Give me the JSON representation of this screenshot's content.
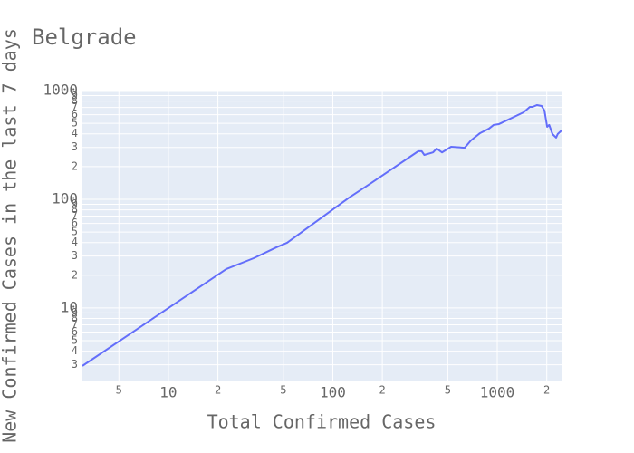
{
  "chart_data": {
    "type": "line",
    "title": "Belgrade",
    "x_label": "Total Confirmed Cases",
    "y_label": "New Confirmed Cases in the last 7 days",
    "xlog": true,
    "ylog": true,
    "grid": true,
    "xlim": [
      3,
      2460
    ],
    "ylim": [
      2.15,
      1000
    ],
    "xticks": [
      5,
      10,
      {
        "value": 20,
        "label": "2"
      },
      {
        "value": 50,
        "label": "5"
      },
      100,
      {
        "value": 200,
        "label": "2"
      },
      {
        "value": 500,
        "label": "5"
      },
      1000,
      {
        "value": 2000,
        "label": "2"
      }
    ],
    "yticks": [
      3,
      4,
      5,
      6,
      7,
      8,
      9,
      10,
      {
        "value": 20,
        "label": "2"
      },
      {
        "value": 30,
        "label": "3"
      },
      {
        "value": 40,
        "label": "4"
      },
      {
        "value": 50,
        "label": "5"
      },
      {
        "value": 60,
        "label": "6"
      },
      {
        "value": 70,
        "label": "7"
      },
      {
        "value": 80,
        "label": "8"
      },
      {
        "value": 90,
        "label": "9"
      },
      100,
      {
        "value": 200,
        "label": "2"
      },
      {
        "value": 300,
        "label": "3"
      },
      {
        "value": 400,
        "label": "4"
      },
      {
        "value": 500,
        "label": "5"
      },
      {
        "value": 600,
        "label": "6"
      },
      {
        "value": 700,
        "label": "7"
      },
      {
        "value": 800,
        "label": "8"
      },
      {
        "value": 900,
        "label": "9"
      },
      1000
    ],
    "series": [
      {
        "name": "Belgrade",
        "color": "#636efa",
        "x": [
          3,
          22.5,
          33,
          45.3,
          52.7,
          126,
          171,
          331,
          347,
          360,
          407,
          428,
          461,
          524,
          634,
          692,
          786,
          891,
          950,
          1025,
          1445,
          1578,
          1640,
          1746,
          1862,
          1936,
          2011,
          2070,
          2167,
          2280,
          2330,
          2460
        ],
        "values": [
          2.93,
          22.8,
          28.7,
          36.1,
          39.8,
          104,
          141,
          277,
          277,
          256,
          270,
          293,
          270,
          304,
          298,
          348,
          406,
          447,
          483,
          492,
          631,
          708,
          708,
          736,
          722,
          656,
          464,
          483,
          398,
          369,
          398,
          430
        ]
      }
    ]
  }
}
